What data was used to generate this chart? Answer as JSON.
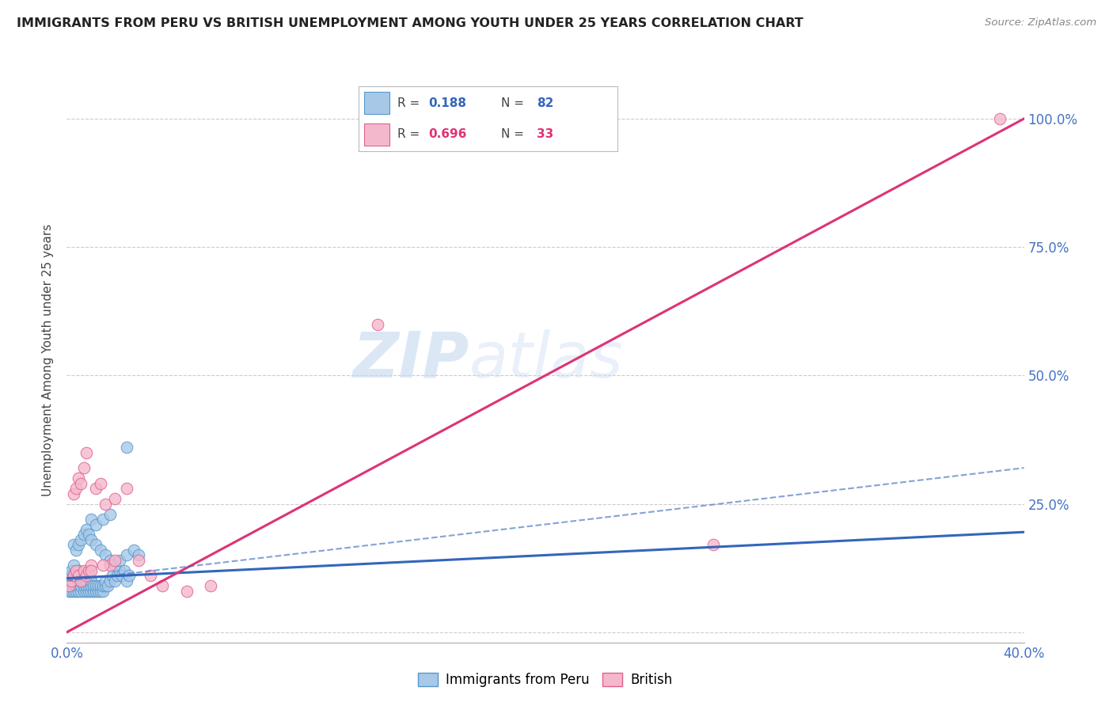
{
  "title": "IMMIGRANTS FROM PERU VS BRITISH UNEMPLOYMENT AMONG YOUTH UNDER 25 YEARS CORRELATION CHART",
  "source": "Source: ZipAtlas.com",
  "ylabel": "Unemployment Among Youth under 25 years",
  "xlim": [
    0.0,
    0.4
  ],
  "ylim": [
    -0.02,
    1.08
  ],
  "yticks": [
    0.0,
    0.25,
    0.5,
    0.75,
    1.0
  ],
  "ytick_labels_right": [
    "",
    "25.0%",
    "50.0%",
    "75.0%",
    "100.0%"
  ],
  "xticks": [
    0.0,
    0.08,
    0.16,
    0.24,
    0.32,
    0.4
  ],
  "xtick_labels": [
    "0.0%",
    "",
    "",
    "",
    "",
    "40.0%"
  ],
  "watermark_line1": "ZIP",
  "watermark_line2": "atlas",
  "blue_color": "#a8c8e8",
  "pink_color": "#f4b8cc",
  "blue_edge_color": "#5599cc",
  "pink_edge_color": "#e06090",
  "blue_line_color": "#3366bb",
  "pink_line_color": "#dd3377",
  "axis_tick_color": "#4472C4",
  "grid_color": "#cccccc",
  "blue_scatter_x": [
    0.001,
    0.001,
    0.001,
    0.001,
    0.002,
    0.002,
    0.002,
    0.002,
    0.002,
    0.003,
    0.003,
    0.003,
    0.003,
    0.003,
    0.004,
    0.004,
    0.004,
    0.004,
    0.005,
    0.005,
    0.005,
    0.005,
    0.006,
    0.006,
    0.006,
    0.006,
    0.007,
    0.007,
    0.007,
    0.008,
    0.008,
    0.008,
    0.009,
    0.009,
    0.01,
    0.01,
    0.01,
    0.011,
    0.011,
    0.012,
    0.012,
    0.013,
    0.013,
    0.014,
    0.014,
    0.015,
    0.015,
    0.016,
    0.016,
    0.017,
    0.018,
    0.019,
    0.02,
    0.021,
    0.022,
    0.023,
    0.024,
    0.025,
    0.026,
    0.003,
    0.004,
    0.005,
    0.006,
    0.007,
    0.008,
    0.009,
    0.01,
    0.012,
    0.014,
    0.016,
    0.018,
    0.02,
    0.022,
    0.025,
    0.028,
    0.03,
    0.025,
    0.01,
    0.012,
    0.015,
    0.018
  ],
  "blue_scatter_y": [
    0.08,
    0.09,
    0.1,
    0.11,
    0.08,
    0.09,
    0.1,
    0.11,
    0.12,
    0.08,
    0.09,
    0.1,
    0.11,
    0.13,
    0.08,
    0.09,
    0.1,
    0.11,
    0.08,
    0.09,
    0.1,
    0.12,
    0.08,
    0.09,
    0.1,
    0.11,
    0.08,
    0.09,
    0.1,
    0.08,
    0.09,
    0.1,
    0.08,
    0.09,
    0.08,
    0.09,
    0.1,
    0.08,
    0.09,
    0.08,
    0.09,
    0.08,
    0.09,
    0.08,
    0.09,
    0.08,
    0.09,
    0.09,
    0.1,
    0.09,
    0.1,
    0.11,
    0.1,
    0.11,
    0.12,
    0.11,
    0.12,
    0.1,
    0.11,
    0.17,
    0.16,
    0.17,
    0.18,
    0.19,
    0.2,
    0.19,
    0.18,
    0.17,
    0.16,
    0.15,
    0.14,
    0.13,
    0.14,
    0.15,
    0.16,
    0.15,
    0.36,
    0.22,
    0.21,
    0.22,
    0.23
  ],
  "pink_scatter_x": [
    0.001,
    0.002,
    0.003,
    0.004,
    0.005,
    0.006,
    0.007,
    0.008,
    0.003,
    0.004,
    0.005,
    0.006,
    0.007,
    0.008,
    0.009,
    0.01,
    0.012,
    0.014,
    0.016,
    0.018,
    0.02,
    0.025,
    0.13,
    0.27,
    0.39,
    0.01,
    0.015,
    0.02,
    0.03,
    0.035,
    0.04,
    0.05,
    0.06
  ],
  "pink_scatter_y": [
    0.09,
    0.1,
    0.11,
    0.12,
    0.11,
    0.1,
    0.12,
    0.11,
    0.27,
    0.28,
    0.3,
    0.29,
    0.32,
    0.35,
    0.12,
    0.13,
    0.28,
    0.29,
    0.25,
    0.13,
    0.14,
    0.28,
    0.6,
    0.17,
    1.0,
    0.12,
    0.13,
    0.26,
    0.14,
    0.11,
    0.09,
    0.08,
    0.09
  ],
  "blue_trend_x": [
    0.0,
    0.4
  ],
  "blue_trend_y": [
    0.105,
    0.195
  ],
  "pink_trend_x": [
    0.0,
    0.4
  ],
  "pink_trend_y": [
    0.0,
    1.0
  ]
}
